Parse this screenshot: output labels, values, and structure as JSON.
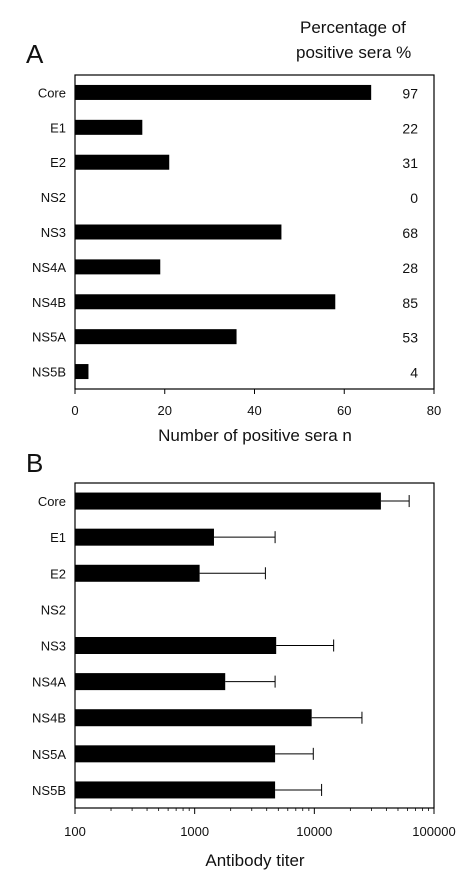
{
  "chart_data": [
    {
      "type": "bar",
      "orientation": "horizontal",
      "panel_label": "A",
      "categories": [
        "Core",
        "E1",
        "E2",
        "NS2",
        "NS3",
        "NS4A",
        "NS4B",
        "NS5A",
        "NS5B"
      ],
      "values": [
        66,
        15,
        21,
        0,
        46,
        19,
        58,
        36,
        3
      ],
      "xlabel": "Number of positive sera n",
      "xlim": [
        0,
        80
      ],
      "xticks": [
        "0",
        "20",
        "40",
        "60",
        "80"
      ],
      "right_annotation_title": [
        "Percentage of",
        "positive sera %"
      ],
      "right_annotation_values": [
        "97",
        "22",
        "31",
        "0",
        "68",
        "28",
        "85",
        "53",
        "4"
      ],
      "grid": false,
      "bar_color": "#000000"
    },
    {
      "type": "bar",
      "orientation": "horizontal",
      "panel_label": "B",
      "categories": [
        "Core",
        "E1",
        "E2",
        "NS2",
        "NS3",
        "NS4A",
        "NS4B",
        "NS5A",
        "NS5B"
      ],
      "values": [
        36000,
        1450,
        1100,
        null,
        4800,
        1800,
        9500,
        4700,
        4700
      ],
      "error_upper": [
        62000,
        4700,
        3900,
        null,
        14500,
        4700,
        25000,
        9800,
        11500
      ],
      "xlabel": "Antibody titer",
      "xscale": "log",
      "xlim": [
        100,
        100000
      ],
      "xticks": [
        "100",
        "1000",
        "10000",
        "100000"
      ],
      "grid": false,
      "bar_color": "#000000"
    }
  ]
}
